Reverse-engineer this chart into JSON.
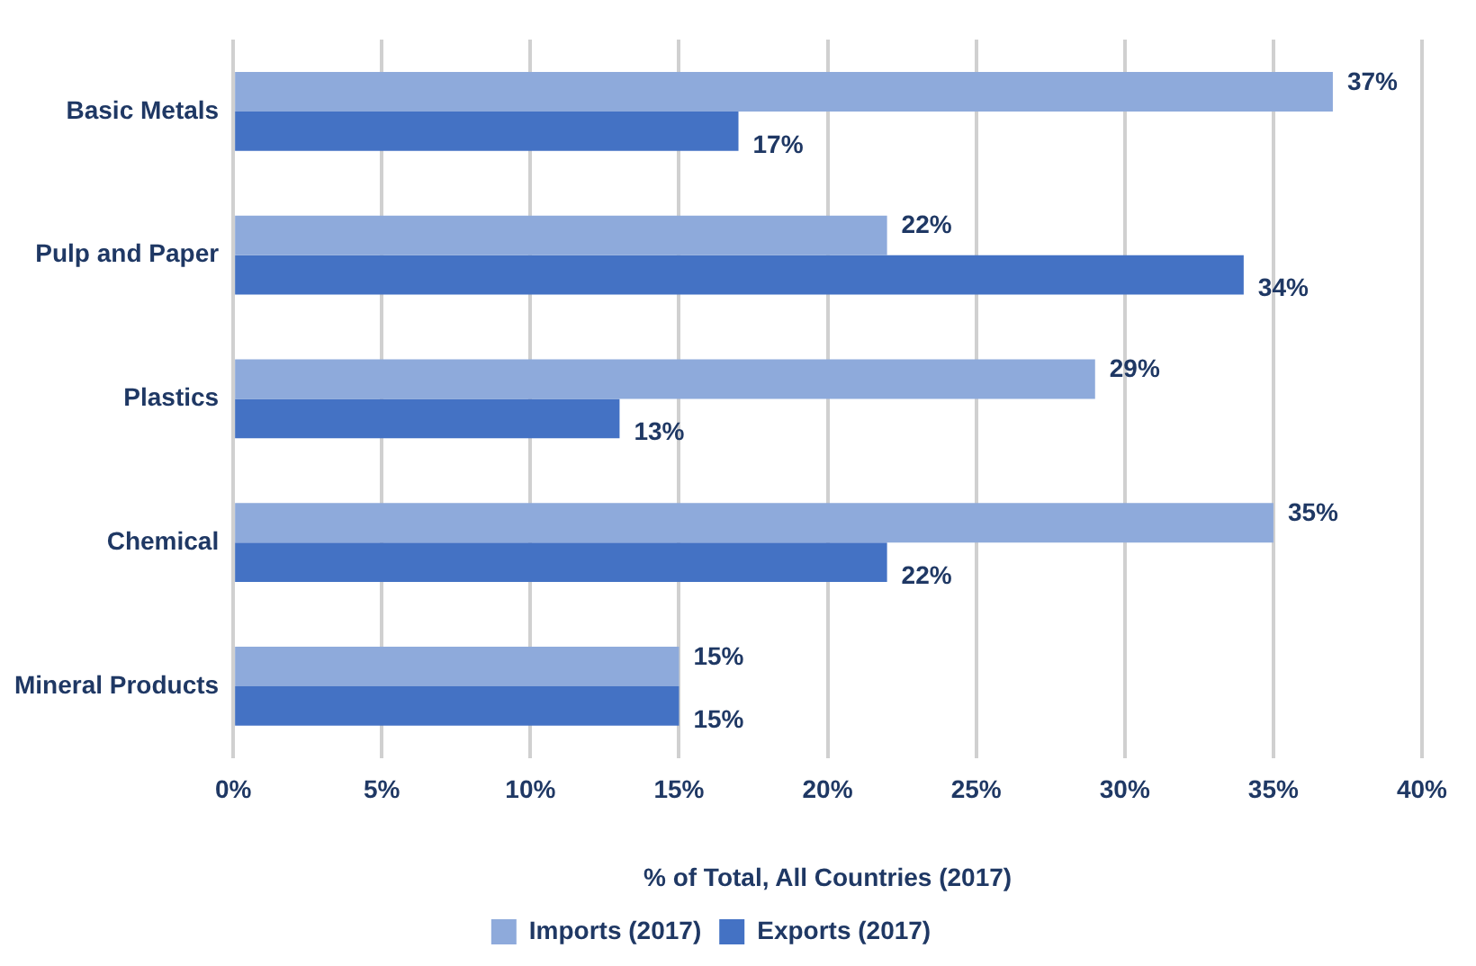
{
  "chart_data": {
    "type": "bar",
    "orientation": "horizontal",
    "xlabel": "% of Total, All Countries (2017)",
    "categories": [
      "Basic Metals",
      "Pulp and Paper",
      "Plastics",
      "Chemical",
      "Mineral Products"
    ],
    "series": [
      {
        "name": "Imports (2017)",
        "color": "#8eaadb",
        "values": [
          37,
          22,
          29,
          35,
          15
        ],
        "value_labels": [
          "37%",
          "22%",
          "29%",
          "35%",
          "15%"
        ]
      },
      {
        "name": "Exports (2017)",
        "color": "#4472c4",
        "values": [
          17,
          34,
          13,
          22,
          15
        ],
        "value_labels": [
          "17%",
          "34%",
          "13%",
          "22%",
          "15%"
        ]
      }
    ],
    "xlim": [
      0,
      40
    ],
    "xticks": [
      {
        "value": 0,
        "label": "0%"
      },
      {
        "value": 5,
        "label": "5%"
      },
      {
        "value": 10,
        "label": "10%"
      },
      {
        "value": 15,
        "label": "15%"
      },
      {
        "value": 20,
        "label": "20%"
      },
      {
        "value": 25,
        "label": "25%"
      },
      {
        "value": 30,
        "label": "30%"
      },
      {
        "value": 35,
        "label": "35%"
      },
      {
        "value": 40,
        "label": "40%"
      }
    ],
    "grid": "x",
    "legend": "bottom"
  }
}
